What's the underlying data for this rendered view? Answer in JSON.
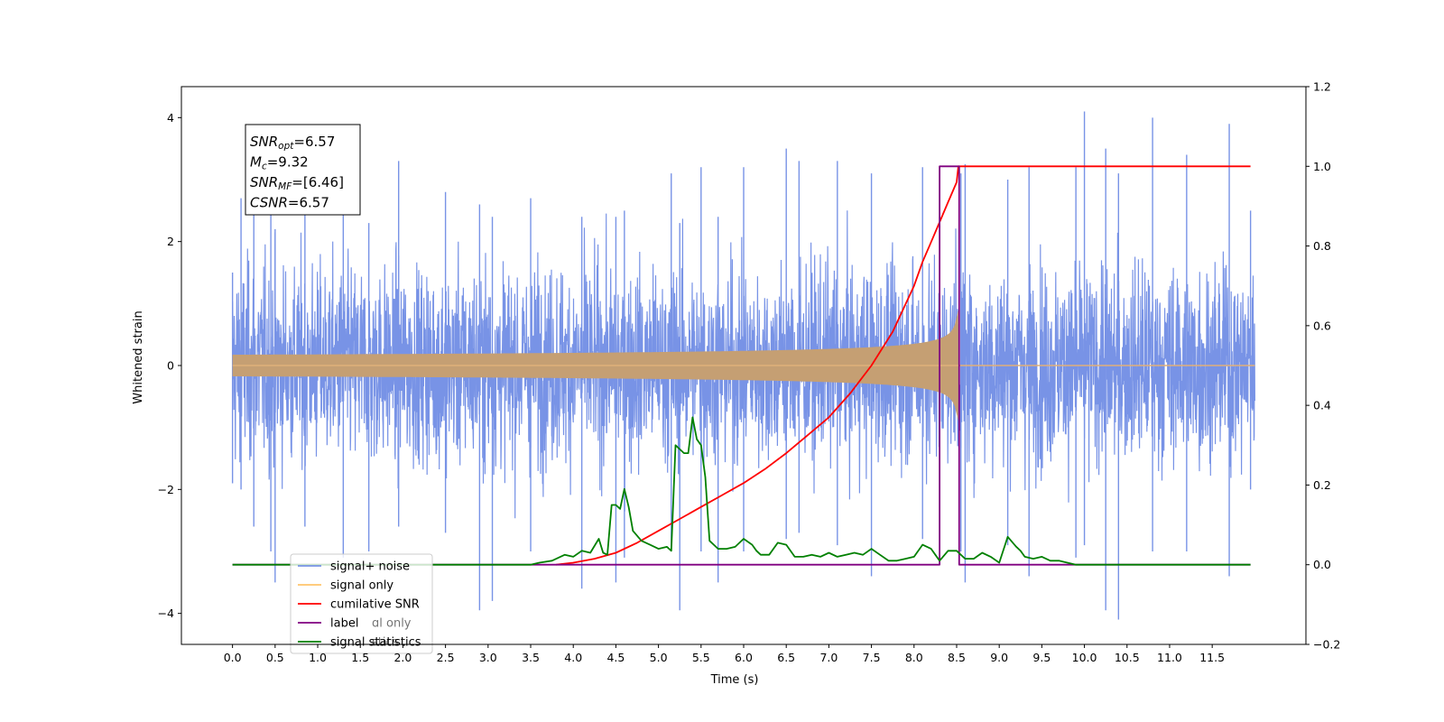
{
  "chart_data": {
    "type": "line",
    "title": "",
    "xlabel": "Time (s)",
    "ylabel_left": "Whitened strain",
    "ylabel_right": "",
    "xlim": [
      -0.6,
      12.6
    ],
    "ylim_left": [
      -4.5,
      4.5
    ],
    "ylim_right": [
      -0.2,
      1.2
    ],
    "x_ticks": [
      "0.0",
      "0.5",
      "1.0",
      "1.5",
      "2.0",
      "2.5",
      "3.0",
      "3.5",
      "4.0",
      "4.5",
      "5.0",
      "5.5",
      "6.0",
      "6.5",
      "7.0",
      "7.5",
      "8.0",
      "8.5",
      "9.0",
      "9.5",
      "10.0",
      "10.5",
      "11.0",
      "11.5"
    ],
    "y_ticks_left": [
      "4",
      "2",
      "0",
      "−2",
      "−4"
    ],
    "y_ticks_right": [
      "1.2",
      "1.0",
      "0.8",
      "0.6",
      "0.4",
      "0.2",
      "0.0",
      "−0.2"
    ],
    "grid": false,
    "legend_position": "lower-left",
    "annotation": {
      "lines": [
        {
          "main": "SNR",
          "sub": "opt",
          "rest": "=6.57"
        },
        {
          "main": "M",
          "sub": "c",
          "rest": "=9.32"
        },
        {
          "main": "SNR",
          "sub": "MF",
          "rest": "=[6.46]"
        },
        {
          "main": "CSNR",
          "sub": "",
          "rest": "=6.57"
        }
      ]
    },
    "series": [
      {
        "name": "signal+ noise",
        "axis": "left",
        "color": "#7893e6",
        "kind": "noise",
        "x_range": [
          0.0,
          12.0
        ],
        "typical_amplitude": 2.2,
        "peaks": [
          [
            0.0,
            1.5,
            -1.9
          ],
          [
            0.1,
            2.7,
            -2.0
          ],
          [
            0.25,
            3.4,
            -2.6
          ],
          [
            0.45,
            3.0,
            -3.0
          ],
          [
            0.5,
            2.2,
            -3.5
          ],
          [
            0.85,
            3.2,
            -2.6
          ],
          [
            1.3,
            3.5,
            -3.1
          ],
          [
            1.6,
            2.3,
            -3.0
          ],
          [
            1.95,
            3.3,
            -2.6
          ],
          [
            2.5,
            2.8,
            -2.7
          ],
          [
            2.9,
            2.6,
            -3.95
          ],
          [
            3.05,
            2.4,
            -3.8
          ],
          [
            3.5,
            2.7,
            -3.0
          ],
          [
            4.1,
            2.4,
            -3.6
          ],
          [
            4.5,
            2.4,
            -3.5
          ],
          [
            4.6,
            2.5,
            -3.1
          ],
          [
            5.15,
            3.1,
            -3.0
          ],
          [
            5.25,
            2.3,
            -3.95
          ],
          [
            5.5,
            3.2,
            -3.0
          ],
          [
            5.7,
            2.4,
            -3.5
          ],
          [
            6.0,
            3.2,
            -3.0
          ],
          [
            6.5,
            3.5,
            -2.8
          ],
          [
            6.65,
            3.3,
            -2.7
          ],
          [
            7.1,
            3.3,
            -2.9
          ],
          [
            7.5,
            3.1,
            -3.4
          ],
          [
            8.1,
            3.2,
            -2.8
          ],
          [
            8.55,
            3.1,
            -3.0
          ],
          [
            8.6,
            3.25,
            -3.5
          ],
          [
            9.1,
            3.0,
            -2.9
          ],
          [
            9.35,
            3.2,
            -3.4
          ],
          [
            9.9,
            3.2,
            -3.1
          ],
          [
            10.0,
            4.1,
            -2.9
          ],
          [
            10.25,
            3.5,
            -3.95
          ],
          [
            10.4,
            3.1,
            -4.1
          ],
          [
            10.8,
            4.0,
            -3.0
          ],
          [
            11.2,
            3.4,
            -3.0
          ],
          [
            11.7,
            3.9,
            -3.4
          ],
          [
            11.95,
            2.5,
            -2.0
          ]
        ]
      },
      {
        "name": "signal only",
        "axis": "left",
        "color": "#c59f73",
        "kind": "chirp",
        "x_range": [
          0.0,
          12.0
        ],
        "merger_time": 8.52,
        "peak_amplitude": 0.9
      },
      {
        "name": "cumilative SNR",
        "axis": "right",
        "color": "#ff0000",
        "x": [
          3.8,
          4.0,
          4.25,
          4.5,
          4.75,
          5.0,
          5.25,
          5.5,
          5.75,
          6.0,
          6.25,
          6.5,
          6.75,
          7.0,
          7.25,
          7.5,
          7.75,
          8.0,
          8.1,
          8.2,
          8.3,
          8.4,
          8.5,
          8.52,
          8.6,
          9.0,
          10.0,
          11.0,
          11.5,
          11.95
        ],
        "y": [
          0.0,
          0.005,
          0.015,
          0.03,
          0.055,
          0.085,
          0.115,
          0.145,
          0.175,
          0.205,
          0.24,
          0.28,
          0.325,
          0.37,
          0.43,
          0.5,
          0.585,
          0.7,
          0.76,
          0.81,
          0.86,
          0.91,
          0.96,
          1.0,
          1.0,
          1.0,
          1.0,
          1.0,
          1.0,
          1.0
        ]
      },
      {
        "name": "label",
        "axis": "right",
        "color": "#800080",
        "x": [
          0.0,
          8.3,
          8.3,
          8.53,
          8.53,
          11.95
        ],
        "y": [
          0.0,
          0.0,
          1.0,
          1.0,
          0.0,
          0.0
        ]
      },
      {
        "name": "signal statistics",
        "axis": "right",
        "color": "#008000",
        "x": [
          0.0,
          3.0,
          3.5,
          3.6,
          3.75,
          3.9,
          4.0,
          4.1,
          4.2,
          4.3,
          4.35,
          4.4,
          4.45,
          4.5,
          4.55,
          4.6,
          4.65,
          4.7,
          4.8,
          4.9,
          5.0,
          5.1,
          5.15,
          5.2,
          5.3,
          5.35,
          5.4,
          5.45,
          5.5,
          5.55,
          5.6,
          5.7,
          5.8,
          5.9,
          6.0,
          6.1,
          6.15,
          6.2,
          6.3,
          6.4,
          6.5,
          6.6,
          6.7,
          6.8,
          6.9,
          7.0,
          7.1,
          7.2,
          7.3,
          7.4,
          7.5,
          7.6,
          7.7,
          7.8,
          7.9,
          8.0,
          8.1,
          8.2,
          8.3,
          8.4,
          8.5,
          8.6,
          8.7,
          8.8,
          8.9,
          9.0,
          9.1,
          9.2,
          9.25,
          9.3,
          9.4,
          9.5,
          9.6,
          9.7,
          9.8,
          9.9,
          10.0,
          11.95
        ],
        "y": [
          0.0,
          0.0,
          0.0,
          0.005,
          0.01,
          0.025,
          0.02,
          0.035,
          0.03,
          0.065,
          0.03,
          0.025,
          0.15,
          0.15,
          0.14,
          0.19,
          0.145,
          0.085,
          0.06,
          0.05,
          0.04,
          0.045,
          0.035,
          0.3,
          0.28,
          0.28,
          0.37,
          0.315,
          0.3,
          0.22,
          0.06,
          0.04,
          0.04,
          0.045,
          0.065,
          0.05,
          0.035,
          0.025,
          0.025,
          0.055,
          0.05,
          0.02,
          0.02,
          0.025,
          0.02,
          0.03,
          0.02,
          0.025,
          0.03,
          0.025,
          0.04,
          0.025,
          0.01,
          0.01,
          0.015,
          0.02,
          0.05,
          0.04,
          0.01,
          0.035,
          0.035,
          0.015,
          0.015,
          0.03,
          0.02,
          0.005,
          0.07,
          0.045,
          0.035,
          0.02,
          0.015,
          0.02,
          0.01,
          0.01,
          0.005,
          0.0,
          0.0,
          0.0
        ]
      }
    ],
    "legend": [
      {
        "label": "signal+ noise",
        "color": "#7893e6"
      },
      {
        "label": "signal only",
        "color": "#ffc56b"
      },
      {
        "label": "cumilative SNR",
        "color": "#ff0000"
      },
      {
        "label": "label",
        "color": "#800080"
      },
      {
        "label": "signal statistics",
        "color": "#008000"
      }
    ],
    "legend_ghost_text": [
      {
        "text": "ɑl only"
      },
      {
        "text": "stics"
      }
    ]
  }
}
